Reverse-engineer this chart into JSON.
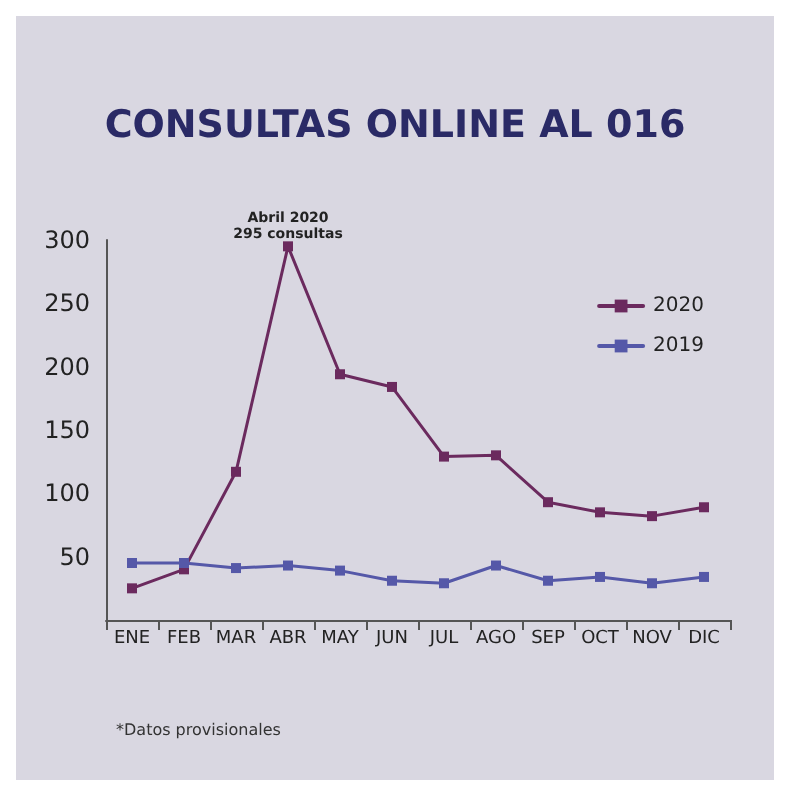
{
  "chart_data": {
    "type": "line",
    "title": "CONSULTAS ONLINE AL 016",
    "categories": [
      "ENE",
      "FEB",
      "MAR",
      "ABR",
      "MAY",
      "JUN",
      "JUL",
      "AGO",
      "SEP",
      "OCT",
      "NOV",
      "DIC"
    ],
    "series": [
      {
        "name": "2020",
        "color": "#6b2a5e",
        "values": [
          25,
          40,
          117,
          295,
          194,
          184,
          129,
          130,
          93,
          85,
          82,
          89
        ]
      },
      {
        "name": "2019",
        "color": "#5558a8",
        "values": [
          45,
          45,
          41,
          43,
          39,
          31,
          29,
          43,
          31,
          34,
          29,
          34
        ]
      }
    ],
    "ylim": [
      0,
      300
    ],
    "yticks": [
      50,
      100,
      150,
      200,
      250,
      300
    ],
    "annotations": [
      {
        "text": "Abril 2020\n295 consultas",
        "x": "ABR",
        "y": 295
      },
      "*Datos provisionales"
    ],
    "legend": "top right",
    "marker": "square",
    "line_style": "solid",
    "grid": false
  }
}
